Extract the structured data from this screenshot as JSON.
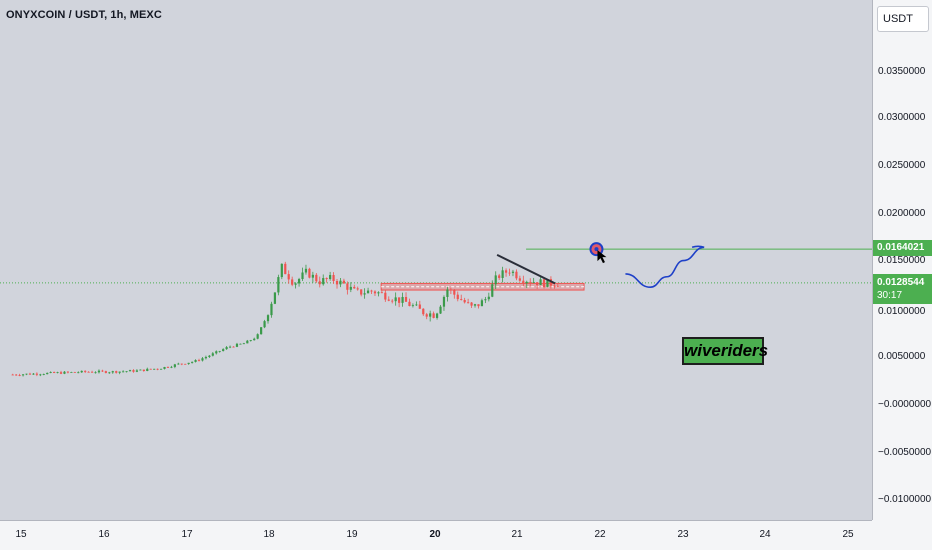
{
  "header": {
    "title": "ONYXCOIN / USDT, 1h, MEXC",
    "currency": "USDT"
  },
  "y_axis_labels": [
    "0.0350000",
    "0.0300000",
    "0.0250000",
    "0.0200000",
    "0.0150000",
    "0.0100000",
    "0.0050000",
    "−0.0000000",
    "−0.0050000",
    "−0.0100000"
  ],
  "x_axis_labels": [
    "15",
    "16",
    "17",
    "18",
    "19",
    "20",
    "21",
    "22",
    "23",
    "24",
    "25"
  ],
  "price_tags": {
    "target": "0.0164021",
    "current": "0.0128544",
    "countdown": "30:17"
  },
  "brand": "wiveriders",
  "colors": {
    "up": "#26a69a",
    "up_bright": "#3a9a4a",
    "down": "#ef5350",
    "target_line": "#4caf50",
    "zone": "#ef5350",
    "projection": "#1e40c8",
    "background": "#d1d4dc"
  },
  "chart_data": {
    "type": "candlestick",
    "title": "ONYXCOIN / USDT, 1h, MEXC",
    "symbol": "ONYXCOIN / USDT",
    "interval": "1h",
    "exchange": "MEXC",
    "y_range": [
      -0.0125,
      0.0395
    ],
    "x_ticks": [
      "15",
      "16",
      "17",
      "18",
      "19",
      "20",
      "21",
      "22",
      "23",
      "24",
      "25"
    ],
    "y_ticks": [
      0.035,
      0.03,
      0.025,
      0.02,
      0.015,
      0.01,
      0.005,
      0,
      -0.005,
      -0.01
    ],
    "target_price": 0.0164021,
    "current_price": 0.0128544,
    "support_zone": [
      0.0121,
      0.0128
    ],
    "series": [
      {
        "x": 14.9,
        "price": 0.0032
      },
      {
        "x": 15.2,
        "price": 0.0033
      },
      {
        "x": 15.5,
        "price": 0.0034
      },
      {
        "x": 15.8,
        "price": 0.0035
      },
      {
        "x": 16.1,
        "price": 0.0035
      },
      {
        "x": 16.4,
        "price": 0.0036
      },
      {
        "x": 16.7,
        "price": 0.0039
      },
      {
        "x": 16.9,
        "price": 0.0043
      },
      {
        "x": 17.1,
        "price": 0.0046
      },
      {
        "x": 17.3,
        "price": 0.0053
      },
      {
        "x": 17.5,
        "price": 0.0061
      },
      {
        "x": 17.7,
        "price": 0.0065
      },
      {
        "x": 17.85,
        "price": 0.0072
      },
      {
        "x": 17.95,
        "price": 0.009
      },
      {
        "x": 18.05,
        "price": 0.0115
      },
      {
        "x": 18.15,
        "price": 0.0145
      },
      {
        "x": 18.3,
        "price": 0.0128
      },
      {
        "x": 18.45,
        "price": 0.014
      },
      {
        "x": 18.6,
        "price": 0.013
      },
      {
        "x": 18.75,
        "price": 0.0133
      },
      {
        "x": 18.9,
        "price": 0.0127
      },
      {
        "x": 19.05,
        "price": 0.0118
      },
      {
        "x": 19.25,
        "price": 0.012
      },
      {
        "x": 19.45,
        "price": 0.0114
      },
      {
        "x": 19.65,
        "price": 0.0108
      },
      {
        "x": 19.85,
        "price": 0.0098
      },
      {
        "x": 20.0,
        "price": 0.0095
      },
      {
        "x": 20.15,
        "price": 0.0122
      },
      {
        "x": 20.3,
        "price": 0.0112
      },
      {
        "x": 20.45,
        "price": 0.0102
      },
      {
        "x": 20.6,
        "price": 0.011
      },
      {
        "x": 20.75,
        "price": 0.0135
      },
      {
        "x": 20.9,
        "price": 0.0142
      },
      {
        "x": 21.05,
        "price": 0.0133
      },
      {
        "x": 21.2,
        "price": 0.013
      },
      {
        "x": 21.35,
        "price": 0.0128
      },
      {
        "x": 21.5,
        "price": 0.0128544
      }
    ],
    "trendline": [
      {
        "x": 20.75,
        "price": 0.0158
      },
      {
        "x": 21.45,
        "price": 0.0128
      }
    ],
    "projection": [
      {
        "x": 22.3,
        "price": 0.0138
      },
      {
        "x": 22.6,
        "price": 0.0124
      },
      {
        "x": 22.8,
        "price": 0.0135
      },
      {
        "x": 23.0,
        "price": 0.0152
      },
      {
        "x": 23.25,
        "price": 0.0166
      }
    ]
  }
}
